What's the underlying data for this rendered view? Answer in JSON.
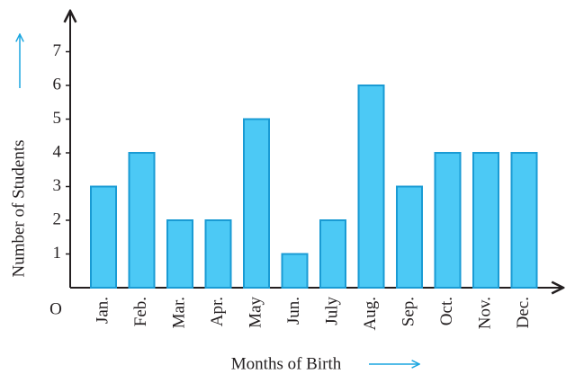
{
  "chart_data": {
    "type": "bar",
    "x_label": "Months of Birth",
    "y_label": "Number of Students",
    "origin_label": "O",
    "categories": [
      "Jan.",
      "Feb.",
      "Mar.",
      "Apr.",
      "May",
      "Jun.",
      "July",
      "Aug.",
      "Sep.",
      "Oct.",
      "Nov.",
      "Dec."
    ],
    "values": [
      3,
      4,
      2,
      2,
      5,
      1,
      2,
      6,
      3,
      4,
      4,
      4
    ],
    "color": "#4cc9f5",
    "ylim": [
      0,
      8
    ],
    "yticks": [
      1,
      2,
      3,
      4,
      5,
      6,
      7
    ],
    "grid": false
  }
}
